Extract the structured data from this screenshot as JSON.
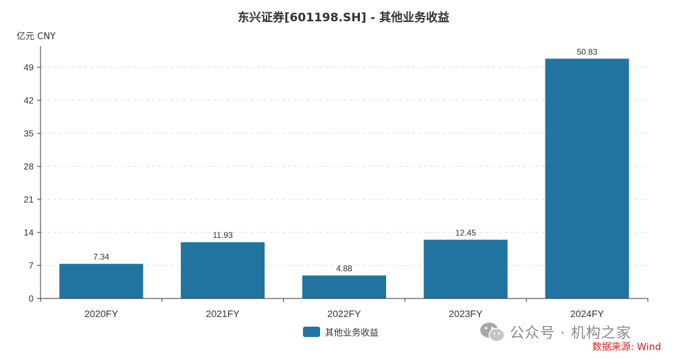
{
  "chart_data": {
    "type": "bar",
    "title": "东兴证券[601198.SH] - 其他业务收益",
    "unit_label": "亿元  CNY",
    "categories": [
      "2020FY",
      "2021FY",
      "2022FY",
      "2023FY",
      "2024FY"
    ],
    "series": [
      {
        "name": "其他业务收益",
        "values": [
          7.34,
          11.93,
          4.88,
          12.45,
          50.83
        ],
        "color": "#21749f"
      }
    ],
    "data_labels": [
      "7.34",
      "11.93",
      "4.88",
      "12.45",
      "50.83"
    ],
    "yticks": [
      0,
      7,
      14,
      21,
      28,
      35,
      42,
      49
    ],
    "ylim": [
      0,
      53.5
    ],
    "grid": true,
    "legend_position": "bottom-center"
  },
  "watermark": {
    "text": "公众号 · 机构之家",
    "icon": "wechat-icon"
  },
  "source": "数据来源: Wind",
  "colors": {
    "bar": "#21749f",
    "grid": "#dddddd",
    "axis": "#333333",
    "source": "#d9201d"
  }
}
